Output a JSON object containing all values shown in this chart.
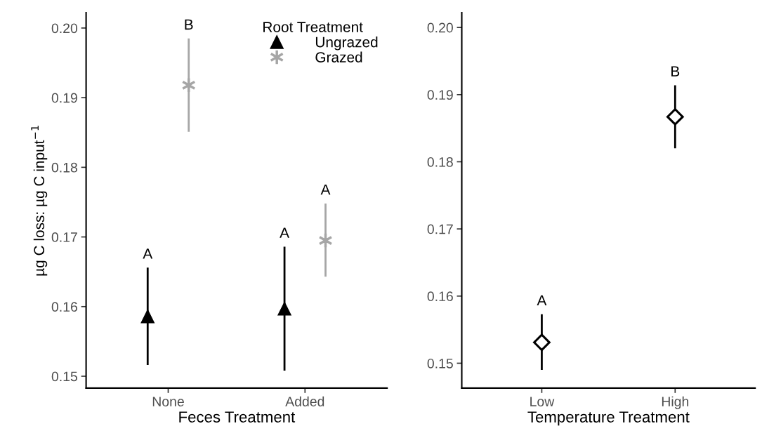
{
  "chart_data": [
    {
      "type": "scatter",
      "categories": [
        "None",
        "Added"
      ],
      "xlabel": "Feces Treatment",
      "ylabel": "µg C loss: µg C input$^{−1}$",
      "legend_title": "Root Treatment",
      "legend": "top right",
      "annotations": [
        "A",
        "A",
        "B",
        "A"
      ],
      "ylim": [
        0.1483,
        0.2022
      ],
      "yticks": [
        {
          "value": 0.15,
          "label": "0.15"
        },
        {
          "value": 0.16,
          "label": "0.16"
        },
        {
          "value": 0.17,
          "label": "0.17"
        },
        {
          "value": 0.18,
          "label": "0.18"
        },
        {
          "value": 0.19,
          "label": "0.19"
        },
        {
          "value": 0.2,
          "label": "0.20"
        }
      ],
      "grid": false,
      "series": [
        {
          "name": "Ungrazed",
          "color": "#000000",
          "marker": "triangle",
          "values": [
            0.1586,
            0.1597
          ],
          "errors": [
            [
              0.1516,
              0.1656
            ],
            [
              0.1508,
              0.1686
            ]
          ]
        },
        {
          "name": "Grazed",
          "color": "#a6a6a6",
          "marker": "cross",
          "values": [
            0.1918,
            0.1695
          ],
          "errors": [
            [
              0.1851,
              0.1985
            ],
            [
              0.1643,
              0.1748
            ]
          ]
        }
      ]
    },
    {
      "type": "scatter",
      "categories": [
        "Low",
        "High"
      ],
      "xlabel": "Temperature Treatment",
      "ylim": [
        0.1463,
        0.2022
      ],
      "yticks": [
        {
          "value": 0.15,
          "label": "0.15"
        },
        {
          "value": 0.16,
          "label": "0.16"
        },
        {
          "value": 0.17,
          "label": "0.17"
        },
        {
          "value": 0.18,
          "label": "0.18"
        },
        {
          "value": 0.19,
          "label": "0.19"
        },
        {
          "value": 0.2,
          "label": "0.20"
        }
      ],
      "grid": false,
      "annotations": [
        "A",
        "B"
      ],
      "series": [
        {
          "color": "#000000",
          "marker": "diamond",
          "values": [
            0.1531,
            0.1867
          ],
          "errors": [
            [
              0.149,
              0.1573
            ],
            [
              0.182,
              0.1914
            ]
          ]
        }
      ]
    }
  ]
}
